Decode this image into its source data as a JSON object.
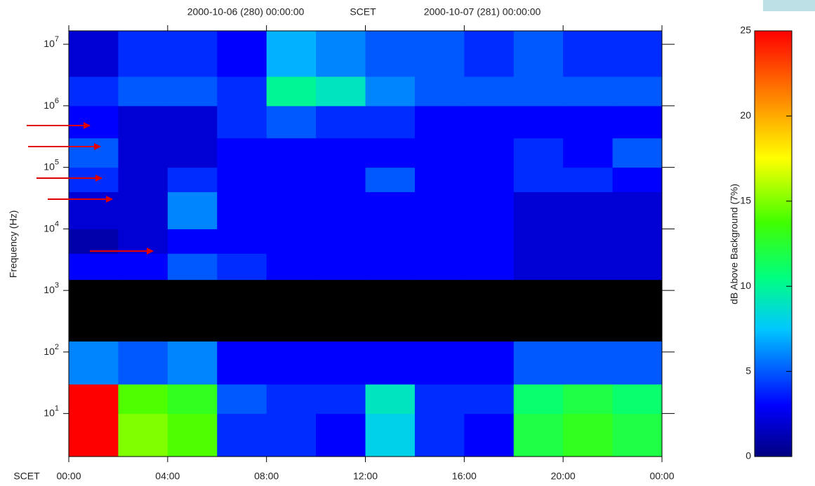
{
  "chart_data": {
    "type": "spectrogram",
    "title_parts": [
      "2000-10-06 (280) 00:00:00",
      "SCET",
      "2000-10-07 (281) 00:00:00"
    ],
    "x_label": "SCET",
    "y_label": "Frequency (Hz)",
    "colorbar_label": "dB Above Background (7%)",
    "xlim": [
      0,
      24
    ],
    "xticks": [
      {
        "value": 0,
        "label": "00:00"
      },
      {
        "value": 4,
        "label": "04:00"
      },
      {
        "value": 8,
        "label": "08:00"
      },
      {
        "value": 12,
        "label": "12:00"
      },
      {
        "value": 16,
        "label": "16:00"
      },
      {
        "value": 20,
        "label": "20:00"
      },
      {
        "value": 24,
        "label": "00:00"
      }
    ],
    "ylim": [
      2,
      16500000
    ],
    "y_log": true,
    "yticks": [
      {
        "value": 10,
        "label": "10",
        "exponent": "1"
      },
      {
        "value": 100,
        "label": "10",
        "exponent": "2"
      },
      {
        "value": 1000,
        "label": "10",
        "exponent": "3"
      },
      {
        "value": 10000,
        "label": "10",
        "exponent": "4"
      },
      {
        "value": 100000,
        "label": "10",
        "exponent": "5"
      },
      {
        "value": 1000000,
        "label": "10",
        "exponent": "6"
      },
      {
        "value": 10000000,
        "label": "10",
        "exponent": "7"
      }
    ],
    "zlim": [
      0,
      25
    ],
    "zticks": [
      0,
      5,
      10,
      15,
      20,
      25
    ],
    "colormap": "jet",
    "null_color": "#000000",
    "x_edges": [
      0,
      2,
      4,
      6,
      8,
      10,
      12,
      14,
      16,
      18,
      20,
      22,
      24
    ],
    "y_edges": [
      2,
      10,
      30,
      150,
      1500,
      4000,
      10000,
      40000,
      100000,
      300000,
      1000000,
      3000000,
      16500000
    ],
    "z": [
      [
        25,
        15,
        14,
        4,
        4,
        3,
        8,
        4,
        3,
        12,
        13,
        12
      ],
      [
        25,
        14,
        13,
        5,
        4,
        4,
        9,
        4,
        4,
        11,
        12,
        11
      ],
      [
        6,
        5,
        6,
        3,
        3,
        3,
        3,
        3,
        3,
        5,
        5,
        5
      ],
      [
        null,
        null,
        null,
        null,
        null,
        null,
        null,
        null,
        null,
        null,
        null,
        null
      ],
      [
        3,
        3,
        5,
        4,
        3,
        3,
        3,
        3,
        3,
        2,
        2,
        2
      ],
      [
        1,
        2,
        3,
        3,
        3,
        3,
        3,
        3,
        3,
        2,
        2,
        2
      ],
      [
        2,
        2,
        6,
        3,
        3,
        3,
        3,
        3,
        3,
        2,
        2,
        2
      ],
      [
        4,
        2,
        4,
        3,
        3,
        3,
        5,
        3,
        3,
        4,
        4,
        3
      ],
      [
        5,
        2,
        2,
        3,
        3,
        3,
        3,
        3,
        3,
        4,
        3,
        5
      ],
      [
        3,
        2,
        2,
        4,
        5,
        4,
        4,
        3,
        3,
        3,
        3,
        3
      ],
      [
        4,
        5,
        5,
        4,
        10,
        9,
        6,
        5,
        5,
        5,
        5,
        5
      ],
      [
        2,
        4,
        4,
        3,
        7,
        6,
        5,
        5,
        4,
        5,
        4,
        4
      ]
    ]
  }
}
